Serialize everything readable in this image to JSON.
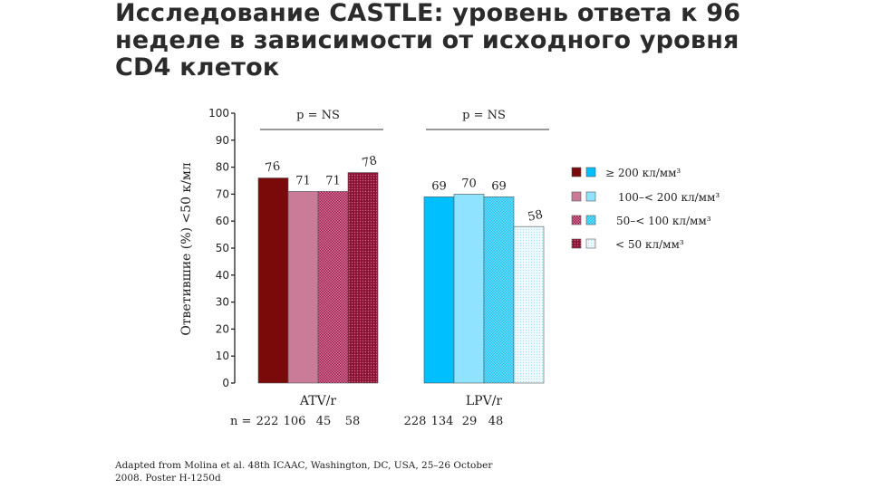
{
  "page": {
    "title_lines": [
      "Исследование CASTLE: уровень ответа к 96",
      "неделе в зависимости от исходного уровня",
      "CD4 клеток"
    ],
    "source_lines": [
      "Adapted from Molina et al. 48th ICAAC, Washington, DC, USA, 25–26 October",
      "2008. Poster H-1250d"
    ]
  },
  "chart_data": {
    "type": "bar",
    "ylabel": "Ответившие (%) <50 к/мл",
    "ylim": [
      0,
      100
    ],
    "yticks": [
      0,
      10,
      20,
      30,
      40,
      50,
      60,
      70,
      80,
      90,
      100
    ],
    "n_prefix": "n =",
    "groups": [
      {
        "label": "ATV/r",
        "p_label": "p = NS",
        "values": [
          76,
          71,
          71,
          78
        ],
        "n": [
          222,
          106,
          45,
          58
        ]
      },
      {
        "label": "LPV/r",
        "p_label": "p = NS",
        "values": [
          69,
          70,
          69,
          58
        ],
        "n": [
          228,
          134,
          29,
          48
        ]
      }
    ],
    "legend": [
      "≥ 200 кл/мм³",
      "100–< 200 кл/мм³",
      "50–< 100 кл/мм³",
      "< 50 кл/мм³"
    ],
    "legend_position": "right",
    "colors": {
      "atv": [
        "#7a0a0a",
        "#c97b97",
        "#a3234f",
        "#8b1535"
      ],
      "lpv": [
        "#00bfff",
        "#8fe3ff",
        "#1ccaf2",
        "#e6f7ff"
      ]
    }
  }
}
